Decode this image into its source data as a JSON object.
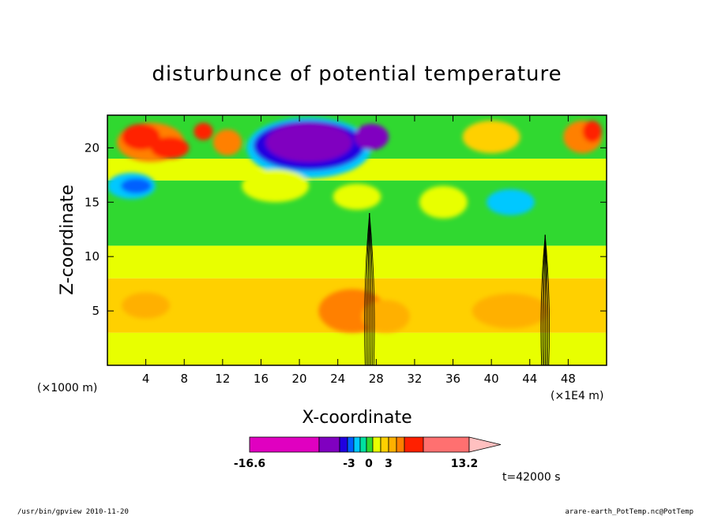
{
  "chart_data": {
    "type": "heatmap",
    "title": "disturbunce of potential temperature",
    "xlabel": "X-coordinate",
    "ylabel": "Z-coordinate",
    "x_unit_left": "(×1000 m)",
    "x_unit_right": "(×1E4 m)",
    "xlim": [
      0,
      52
    ],
    "ylim": [
      0,
      23
    ],
    "x_ticks": [
      4,
      8,
      12,
      16,
      20,
      24,
      28,
      32,
      36,
      40,
      44,
      48
    ],
    "y_ticks": [
      5,
      10,
      15,
      20
    ],
    "colorbar": {
      "labels": [
        "-16.6",
        "-3",
        "0",
        "3",
        "13.2"
      ],
      "colors": [
        "#e000c0",
        "#8000c0",
        "#2000e0",
        "#0060ff",
        "#00c8ff",
        "#00e0a0",
        "#30d830",
        "#e8ff00",
        "#ffd000",
        "#ffb000",
        "#ff8000",
        "#ff2000",
        "#ff7070",
        "#ffc0c0"
      ]
    },
    "time_label": "t=42000 s",
    "field": {
      "bands": [
        {
          "zmin": 0,
          "zmax": 3,
          "color": "#e8ff00"
        },
        {
          "zmin": 3,
          "zmax": 8,
          "color": "#ffd000"
        },
        {
          "zmin": 8,
          "zmax": 11,
          "color": "#e8ff00"
        },
        {
          "zmin": 11,
          "zmax": 17,
          "color": "#30d830"
        },
        {
          "zmin": 17,
          "zmax": 19,
          "color": "#e8ff00"
        },
        {
          "zmin": 19,
          "zmax": 23,
          "color": "#30d830"
        }
      ],
      "blobs": [
        {
          "x": 4.5,
          "z": 20.5,
          "rx": 3.5,
          "rz": 1.8,
          "color": "#ff8000"
        },
        {
          "x": 3.5,
          "z": 21,
          "rx": 2.0,
          "rz": 1.2,
          "color": "#ff2000"
        },
        {
          "x": 6.5,
          "z": 20,
          "rx": 2.0,
          "rz": 1.0,
          "color": "#ff2000"
        },
        {
          "x": 2.5,
          "z": 16.5,
          "rx": 2.5,
          "rz": 1.2,
          "color": "#00c8ff"
        },
        {
          "x": 3.0,
          "z": 16.5,
          "rx": 1.6,
          "rz": 0.7,
          "color": "#0060ff"
        },
        {
          "x": 10,
          "z": 21.5,
          "rx": 1.0,
          "rz": 0.8,
          "color": "#ff2000"
        },
        {
          "x": 12.5,
          "z": 20.5,
          "rx": 1.5,
          "rz": 1.2,
          "color": "#ff8000"
        },
        {
          "x": 21,
          "z": 20,
          "rx": 6.5,
          "rz": 2.8,
          "color": "#00c8ff"
        },
        {
          "x": 21,
          "z": 20.2,
          "rx": 5.8,
          "rz": 2.3,
          "color": "#2000e0"
        },
        {
          "x": 21,
          "z": 20.5,
          "rx": 4.5,
          "rz": 1.8,
          "color": "#8000c0"
        },
        {
          "x": 27.5,
          "z": 21,
          "rx": 1.8,
          "rz": 1.2,
          "color": "#8000c0"
        },
        {
          "x": 17.5,
          "z": 16.5,
          "rx": 3.5,
          "rz": 1.5,
          "color": "#e8ff00"
        },
        {
          "x": 26,
          "z": 15.5,
          "rx": 2.5,
          "rz": 1.2,
          "color": "#e8ff00"
        },
        {
          "x": 35,
          "z": 15,
          "rx": 2.5,
          "rz": 1.5,
          "color": "#e8ff00"
        },
        {
          "x": 42,
          "z": 15,
          "rx": 2.5,
          "rz": 1.2,
          "color": "#00c8ff"
        },
        {
          "x": 40,
          "z": 21,
          "rx": 3.0,
          "rz": 1.5,
          "color": "#ffd000"
        },
        {
          "x": 49.5,
          "z": 21,
          "rx": 2.0,
          "rz": 1.5,
          "color": "#ff8000"
        },
        {
          "x": 50.5,
          "z": 21.5,
          "rx": 1.0,
          "rz": 1.0,
          "color": "#ff2000"
        },
        {
          "x": 25.5,
          "z": 5,
          "rx": 3.5,
          "rz": 2.0,
          "color": "#ff8000"
        },
        {
          "x": 29,
          "z": 4.5,
          "rx": 2.5,
          "rz": 1.5,
          "color": "#ffb000"
        },
        {
          "x": 4,
          "z": 5.5,
          "rx": 2.5,
          "rz": 1.2,
          "color": "#ffb000"
        },
        {
          "x": 42,
          "z": 5,
          "rx": 4.0,
          "rz": 1.6,
          "color": "#ffb000"
        }
      ],
      "plumes": [
        {
          "x": 27.3,
          "ztop": 14,
          "halfwidth": 0.6
        },
        {
          "x": 45.6,
          "ztop": 12,
          "halfwidth": 0.5
        }
      ]
    }
  },
  "footer": {
    "left": "/usr/bin/gpview 2010-11-20",
    "right": "arare-earth_PotTemp.nc@PotTemp"
  }
}
